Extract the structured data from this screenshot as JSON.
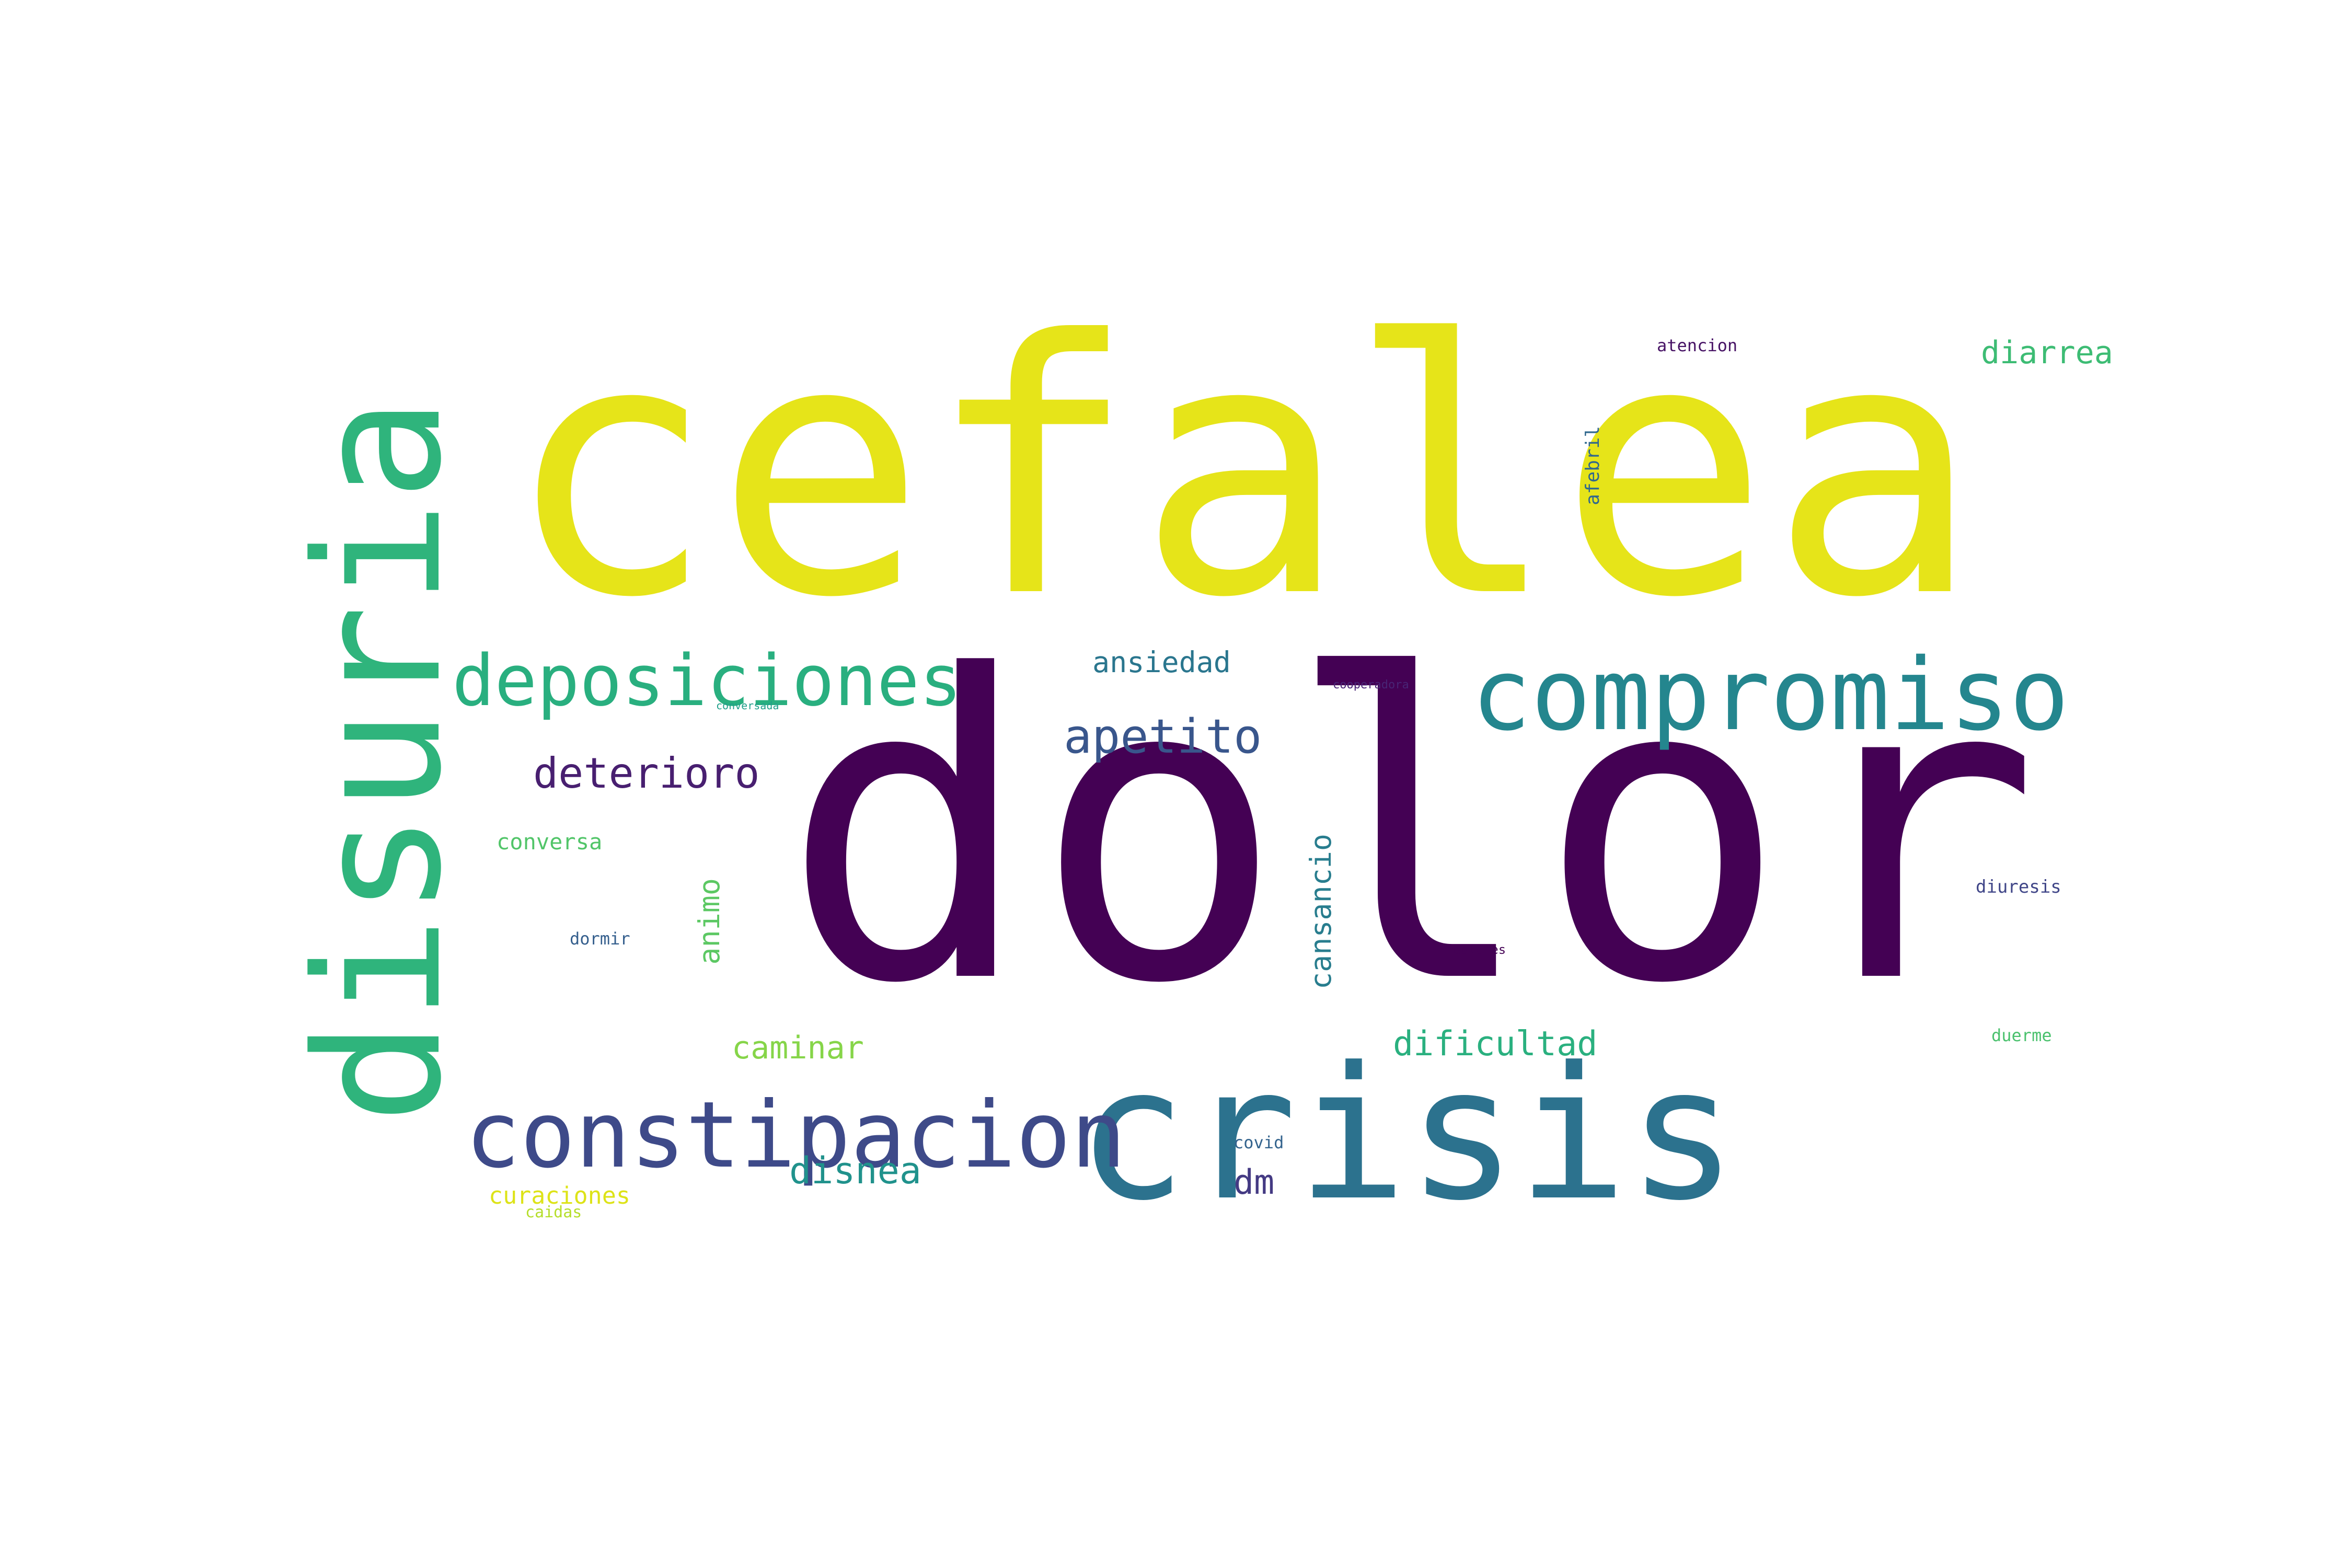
{
  "wordcloud": {
    "words": [
      {
        "text": "dolor",
        "color": "#440154"
      },
      {
        "text": "cefalea",
        "color": "#e6e419"
      },
      {
        "text": "disuria",
        "color": "#2fb47c"
      },
      {
        "text": "crisis",
        "color": "#2c728e"
      },
      {
        "text": "compromiso",
        "color": "#24868e"
      },
      {
        "text": "constipacion",
        "color": "#3e4a89"
      },
      {
        "text": "deposiciones",
        "color": "#29af7f"
      },
      {
        "text": "apetito",
        "color": "#39568c"
      },
      {
        "text": "deterioro",
        "color": "#481f70"
      },
      {
        "text": "diarrea",
        "color": "#3dbc74"
      },
      {
        "text": "ansiedad",
        "color": "#2a768e"
      },
      {
        "text": "disnea",
        "color": "#20928c"
      },
      {
        "text": "caminar",
        "color": "#86d549"
      },
      {
        "text": "dificultad",
        "color": "#2ab07f"
      },
      {
        "text": "cansancio",
        "color": "#287d8e"
      },
      {
        "text": "animo",
        "color": "#5cc863"
      },
      {
        "text": "dm",
        "color": "#443a83"
      },
      {
        "text": "curaciones",
        "color": "#dde318"
      },
      {
        "text": "conversa",
        "color": "#52c569"
      },
      {
        "text": "dormir",
        "color": "#355f8d"
      },
      {
        "text": "caidas",
        "color": "#b5de2b"
      },
      {
        "text": "atencion",
        "color": "#471365"
      },
      {
        "text": "afebril",
        "color": "#31688e"
      },
      {
        "text": "diuresis",
        "color": "#404688"
      },
      {
        "text": "duerme",
        "color": "#4ac16d"
      },
      {
        "text": "covid",
        "color": "#33638d"
      },
      {
        "text": "dolores",
        "color": "#440154"
      },
      {
        "text": "cooperadora",
        "color": "#482475"
      },
      {
        "text": "conversada",
        "color": "#1f9e89"
      }
    ]
  }
}
